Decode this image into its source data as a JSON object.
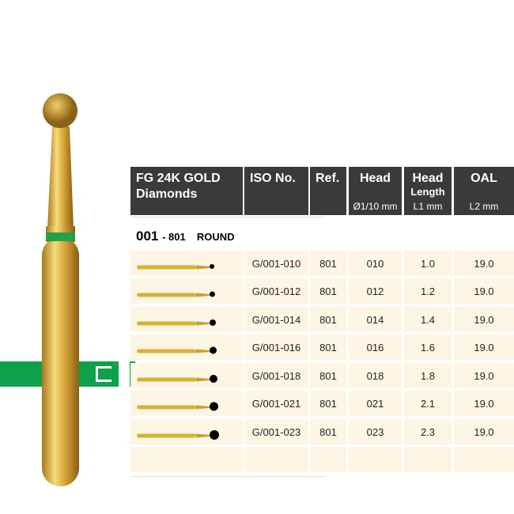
{
  "colors": {
    "accent_green": "#0fa14a",
    "header_bg": "#3a3a3a",
    "row_bg": "#fdf6e4",
    "gold": "#d9b13a"
  },
  "badge_letter": "C",
  "header": {
    "product": "FG 24K GOLD Diamonds",
    "iso": "ISO No.",
    "ref": "Ref.",
    "head": "Head",
    "head_sub": "Ø1/10 mm",
    "head_length": "Head",
    "head_length_mid": "Length",
    "head_length_sub": "L1 mm",
    "oal": "OAL",
    "oal_sub": "L2 mm"
  },
  "section": {
    "code": "001",
    "ref": "- 801",
    "shape": "ROUND"
  },
  "rows": [
    {
      "iso": "G/001-010",
      "ref": "801",
      "head": "010",
      "l1": "1.0",
      "l2": "19.0"
    },
    {
      "iso": "G/001-012",
      "ref": "801",
      "head": "012",
      "l1": "1.2",
      "l2": "19.0"
    },
    {
      "iso": "G/001-014",
      "ref": "801",
      "head": "014",
      "l1": "1.4",
      "l2": "19.0"
    },
    {
      "iso": "G/001-016",
      "ref": "801",
      "head": "016",
      "l1": "1.6",
      "l2": "19.0"
    },
    {
      "iso": "G/001-018",
      "ref": "801",
      "head": "018",
      "l1": "1.8",
      "l2": "19.0"
    },
    {
      "iso": "G/001-021",
      "ref": "801",
      "head": "021",
      "l1": "2.1",
      "l2": "19.0"
    },
    {
      "iso": "G/001-023",
      "ref": "801",
      "head": "023",
      "l1": "2.3",
      "l2": "19.0"
    },
    {
      "iso": "",
      "ref": "",
      "head": "",
      "l1": "",
      "l2": ""
    }
  ]
}
